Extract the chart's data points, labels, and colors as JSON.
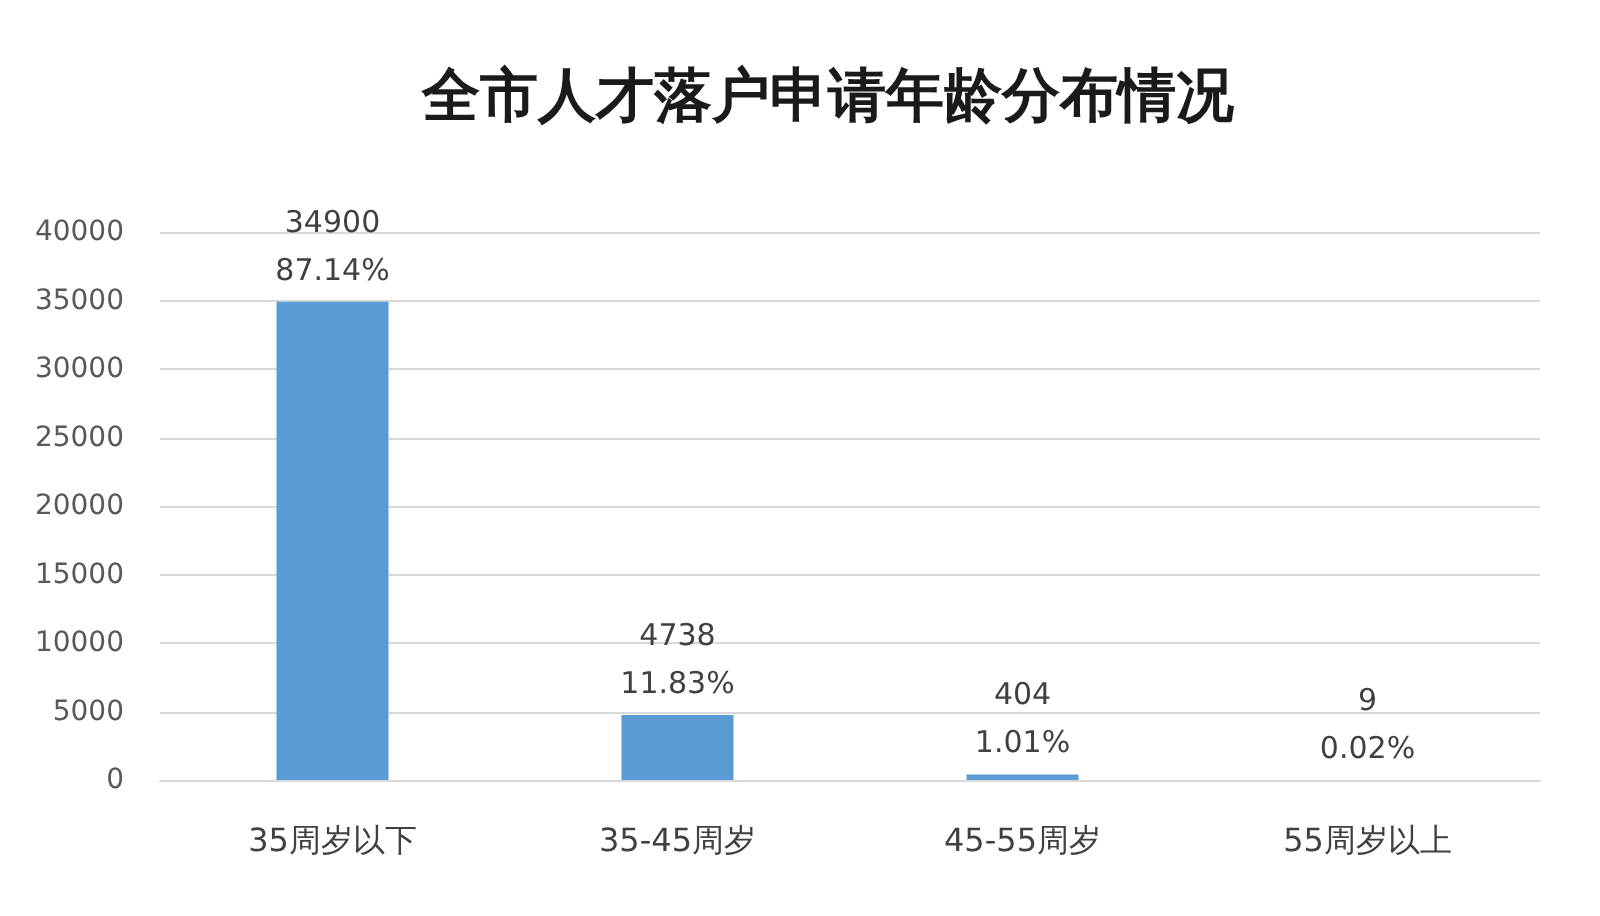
{
  "chart_data": {
    "type": "bar",
    "title": "全市人才落户申请年龄分布情况",
    "categories": [
      "35周岁以下",
      "35-45周岁",
      "45-55周岁",
      "55周岁以上"
    ],
    "values": [
      34900,
      4738,
      404,
      9
    ],
    "color": "#5b9bd5",
    "value_labels": [
      "34900\n87.14%",
      "4738\n11.83%",
      "404\n1.01%",
      "9\n0.02%"
    ],
    "ylim": [
      0,
      40000
    ],
    "yticks": [
      0,
      5000,
      10000,
      15000,
      20000,
      25000,
      30000,
      35000,
      40000
    ],
    "grid": "y"
  }
}
